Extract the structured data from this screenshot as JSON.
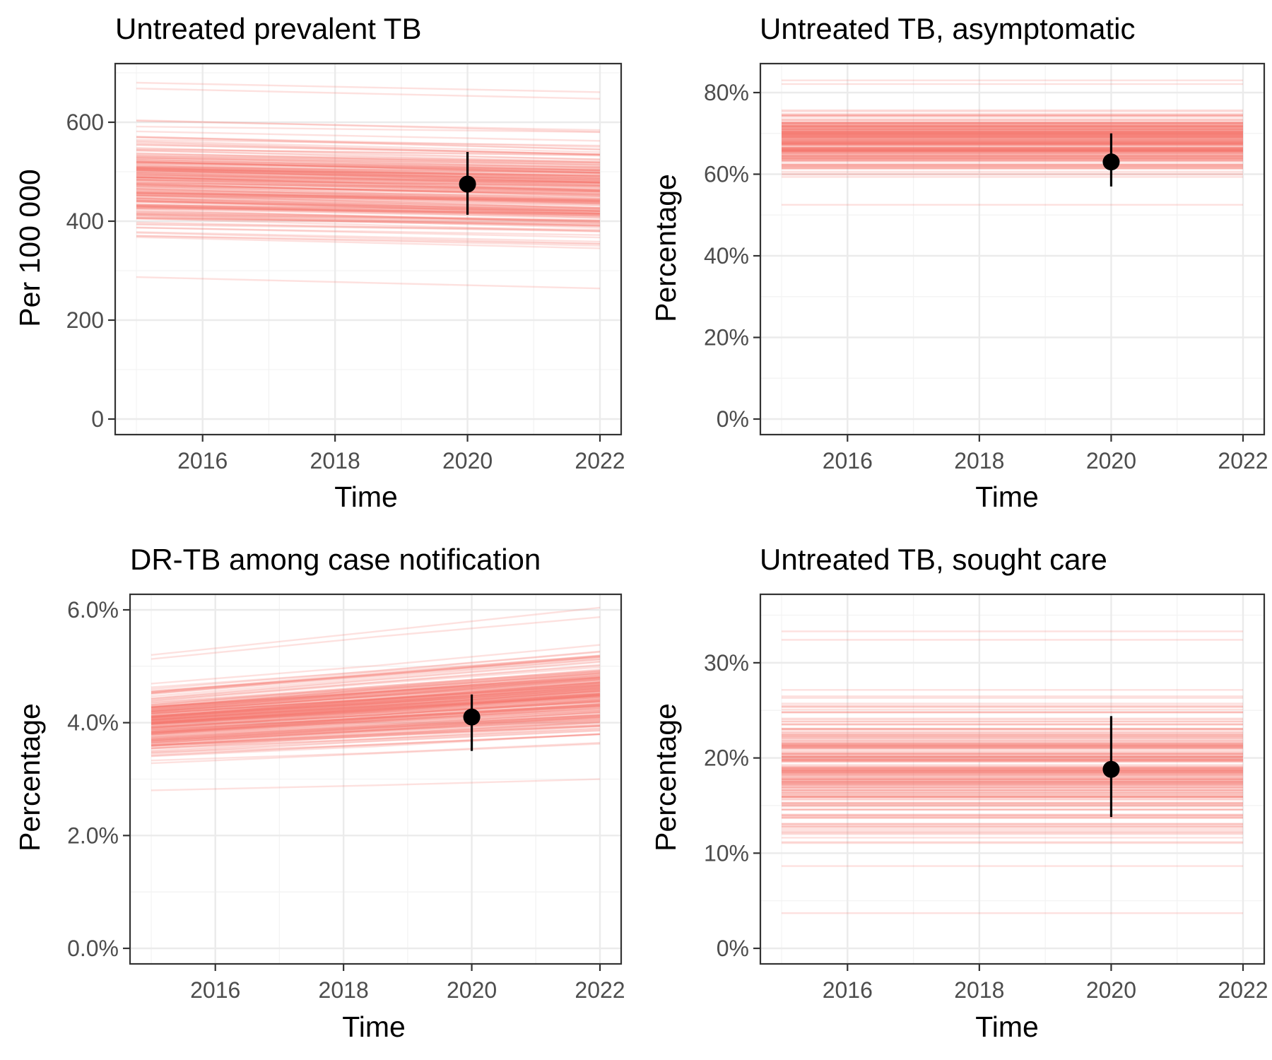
{
  "style": {
    "series_color": "#f8766d",
    "point_color": "#000000"
  },
  "chart_data": [
    {
      "type": "line",
      "title": "Untreated prevalent TB",
      "xlabel": "Time",
      "ylabel": "Per 100 000",
      "xlim": [
        2015,
        2022
      ],
      "ylim": [
        0,
        700
      ],
      "x_ticks": [
        2016,
        2018,
        2020,
        2022
      ],
      "x_tick_labels": [
        "2016",
        "2018",
        "2020",
        "2022"
      ],
      "y_ticks": [
        0,
        200,
        400,
        600
      ],
      "y_tick_labels": [
        "0",
        "200",
        "400",
        "600"
      ],
      "grid": true,
      "series_description": "~200 model trajectories",
      "trajectories": {
        "count": 200,
        "start_range": [
          287,
          680
        ],
        "end_range": [
          268,
          662
        ],
        "note": "slightly declining lines"
      },
      "observation": {
        "x": 2020,
        "y": 475,
        "lower": 413,
        "upper": 540
      }
    },
    {
      "type": "line",
      "title": "Untreated TB, asymptomatic",
      "xlabel": "Time",
      "ylabel": "Percentage",
      "xlim": [
        2015,
        2022
      ],
      "ylim": [
        0,
        0.8
      ],
      "x_ticks": [
        2016,
        2018,
        2020,
        2022
      ],
      "x_tick_labels": [
        "2016",
        "2018",
        "2020",
        "2022"
      ],
      "y_ticks": [
        0,
        0.2,
        0.4,
        0.6,
        0.8
      ],
      "y_tick_labels": [
        "0%",
        "20%",
        "40%",
        "60%",
        "80%"
      ],
      "grid": true,
      "trajectories": {
        "count": 200,
        "start_range": [
          0.525,
          0.83
        ],
        "end_range": [
          0.525,
          0.83
        ],
        "note": "flat lines"
      },
      "observation": {
        "x": 2020,
        "y": 0.63,
        "lower": 0.57,
        "upper": 0.7
      }
    },
    {
      "type": "line",
      "title": "DR-TB among case notification",
      "xlabel": "Time",
      "ylabel": "Percentage",
      "xlim": [
        2015,
        2022
      ],
      "ylim": [
        0,
        0.06
      ],
      "x_ticks": [
        2016,
        2018,
        2020,
        2022
      ],
      "x_tick_labels": [
        "2016",
        "2018",
        "2020",
        "2022"
      ],
      "y_ticks": [
        0,
        0.02,
        0.04,
        0.06
      ],
      "y_tick_labels": [
        "0.0%",
        "2.0%",
        "4.0%",
        "6.0%"
      ],
      "grid": true,
      "trajectories": {
        "count": 200,
        "start_range": [
          0.028,
          0.052
        ],
        "end_range": [
          0.03,
          0.06
        ],
        "note": "rising lines"
      },
      "observation": {
        "x": 2020,
        "y": 0.041,
        "lower": 0.035,
        "upper": 0.045
      }
    },
    {
      "type": "line",
      "title": "Untreated TB, sought care",
      "xlabel": "Time",
      "ylabel": "Percentage",
      "xlim": [
        2015,
        2022
      ],
      "ylim": [
        0,
        0.34
      ],
      "x_ticks": [
        2016,
        2018,
        2020,
        2022
      ],
      "x_tick_labels": [
        "2016",
        "2018",
        "2020",
        "2022"
      ],
      "y_ticks": [
        0,
        0.1,
        0.2,
        0.3
      ],
      "y_tick_labels": [
        "0%",
        "10%",
        "20%",
        "30%"
      ],
      "grid": true,
      "trajectories": {
        "count": 200,
        "start_range": [
          0.037,
          0.333
        ],
        "end_range": [
          0.037,
          0.333
        ],
        "note": "flat lines"
      },
      "observation": {
        "x": 2020,
        "y": 0.188,
        "lower": 0.138,
        "upper": 0.244
      }
    }
  ]
}
